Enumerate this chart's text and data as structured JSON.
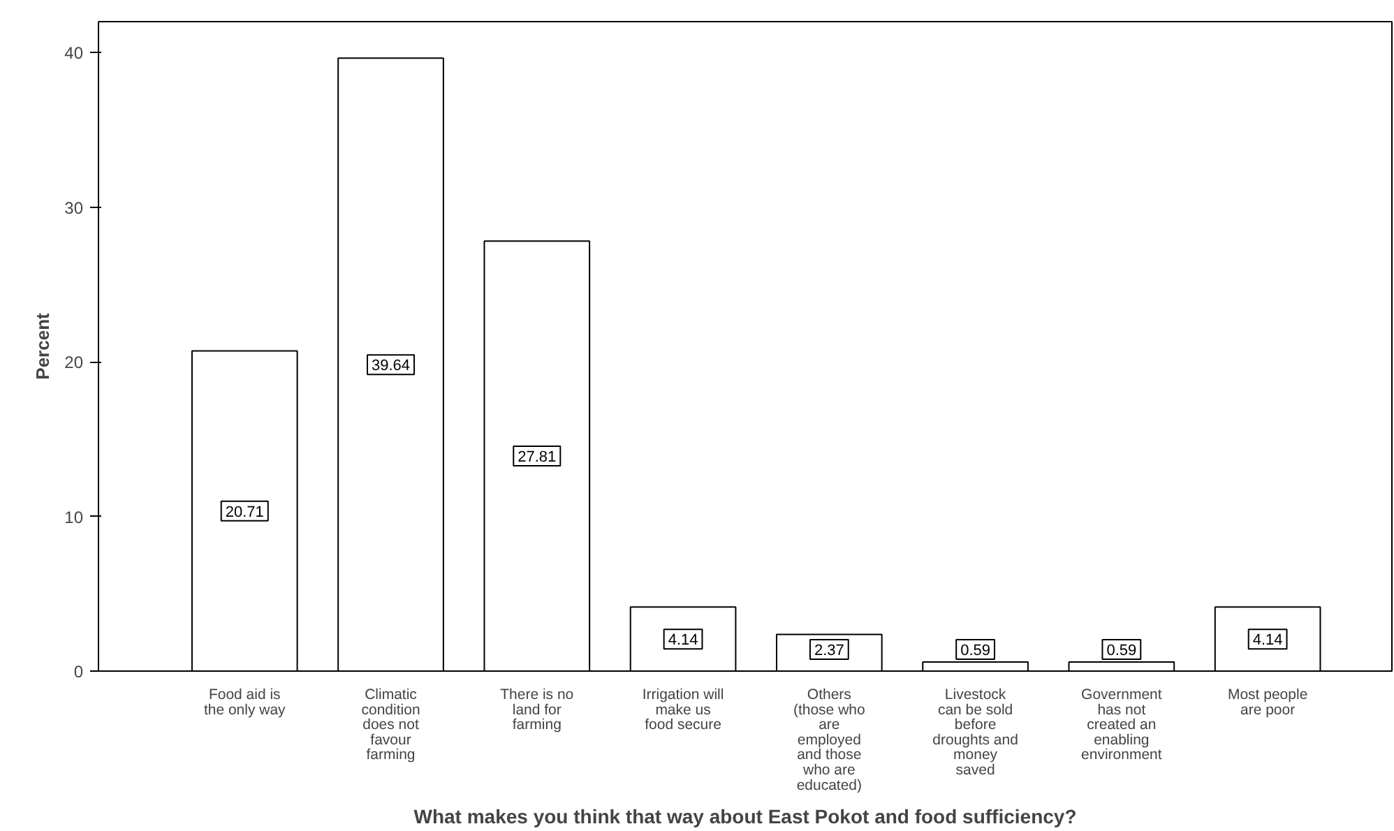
{
  "chart_data": {
    "type": "bar",
    "xlabel": "What makes you think that way about East Pokot and food sufficiency?",
    "ylabel": "Percent",
    "categories": [
      "Food aid is\nthe only way",
      "Climatic\ncondition\ndoes not\nfavour\nfarming",
      "There is no\nland for\nfarming",
      "Irrigation will\nmake us\nfood secure",
      "Others\n(those who\nare\nemployed\nand those\nwho are\neducated)",
      "Livestock\ncan be sold\nbefore\ndroughts and\nmoney\nsaved",
      "Government\nhas not\ncreated an\nenabling\nenvironment",
      "Most people\nare poor"
    ],
    "values": [
      20.71,
      39.64,
      27.81,
      4.14,
      2.37,
      0.59,
      0.59,
      4.14
    ],
    "color": "#ffffff",
    "ylim": [
      0,
      42
    ],
    "yticks": [
      0,
      10,
      20,
      30,
      40
    ],
    "grid": false,
    "data_labels": true
  }
}
